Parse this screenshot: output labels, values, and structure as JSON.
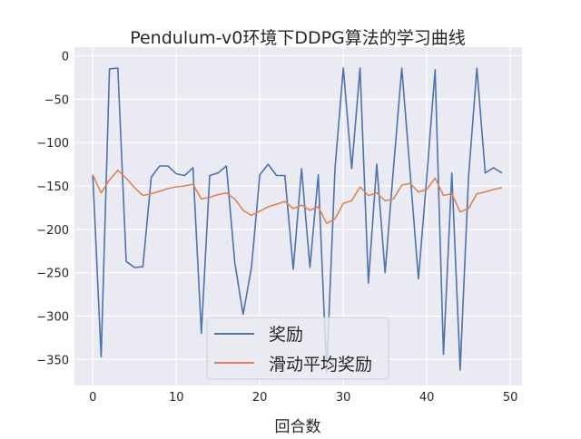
{
  "chart_data": {
    "type": "line",
    "title": "Pendulum-v0环境下DDPG算法的学习曲线",
    "xlabel": "回合数",
    "ylabel": "",
    "xlim": [
      -2.2,
      51.4
    ],
    "ylim": [
      -380,
      10
    ],
    "xticks": [
      0,
      10,
      20,
      30,
      40,
      50
    ],
    "yticks": [
      0,
      -50,
      -100,
      -150,
      -200,
      -250,
      -300,
      -350
    ],
    "xtick_labels": [
      "0",
      "10",
      "20",
      "30",
      "40",
      "50"
    ],
    "ytick_labels": [
      "0",
      "−50",
      "−100",
      "−150",
      "−200",
      "−250",
      "−300",
      "−350"
    ],
    "grid": true,
    "legend_position": "lower-center",
    "background": "#eaeaf2",
    "x": [
      0,
      1,
      2,
      3,
      4,
      5,
      6,
      7,
      8,
      9,
      10,
      11,
      12,
      13,
      14,
      15,
      16,
      17,
      18,
      19,
      20,
      21,
      22,
      23,
      24,
      25,
      26,
      27,
      28,
      29,
      30,
      31,
      32,
      33,
      34,
      35,
      36,
      37,
      38,
      39,
      40,
      41,
      42,
      43,
      44,
      45,
      46,
      47,
      48,
      49
    ],
    "series": [
      {
        "name": "奖励",
        "color": "#4c72b0",
        "values": [
          -137,
          -347,
          -15,
          -14,
          -237,
          -244,
          -243,
          -140,
          -127,
          -127,
          -136,
          -138,
          -129,
          -320,
          -138,
          -135,
          -127,
          -238,
          -298,
          -244,
          -137,
          -125,
          -138,
          -138,
          -246,
          -130,
          -244,
          -137,
          -365,
          -130,
          -14,
          -130,
          -14,
          -262,
          -125,
          -250,
          -130,
          -14,
          -135,
          -257,
          -140,
          -16,
          -344,
          -135,
          -362,
          -140,
          -14,
          -135,
          -129,
          -135
        ]
      },
      {
        "name": "滑动平均奖励",
        "color": "#dd8452",
        "values": [
          -137,
          -158,
          -143,
          -132,
          -141,
          -152,
          -161,
          -159,
          -156,
          -153,
          -151,
          -150,
          -148,
          -165,
          -163,
          -160,
          -158,
          -165,
          -178,
          -184,
          -179,
          -174,
          -171,
          -168,
          -176,
          -172,
          -178,
          -174,
          -193,
          -188,
          -170,
          -167,
          -151,
          -161,
          -158,
          -167,
          -165,
          -149,
          -147,
          -157,
          -154,
          -141,
          -161,
          -159,
          -180,
          -176,
          -159,
          -157,
          -154,
          -152
        ]
      }
    ]
  }
}
